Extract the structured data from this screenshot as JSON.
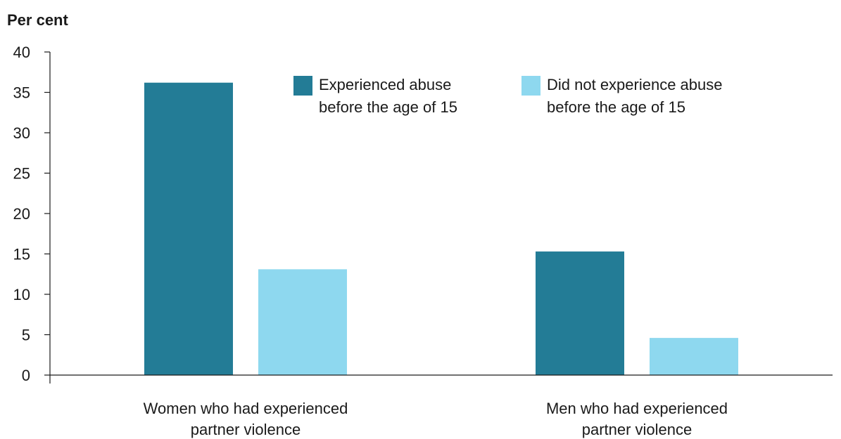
{
  "chart_data": {
    "type": "bar",
    "ylabel": "Per cent",
    "ylim": [
      0,
      40
    ],
    "yticks": [
      0,
      5,
      10,
      15,
      20,
      25,
      30,
      35,
      40
    ],
    "categories": [
      [
        "Women who had experienced",
        "partner violence"
      ],
      [
        "Men who had experienced",
        "partner violence"
      ]
    ],
    "series": [
      {
        "name": [
          "Experienced abuse",
          "before the age of 15"
        ],
        "color": "#237c96",
        "values": [
          36.2,
          15.3
        ]
      },
      {
        "name": [
          "Did not experience abuse",
          "before the age of 15"
        ],
        "color": "#8ed8ef",
        "values": [
          13.1,
          4.6
        ]
      }
    ],
    "legend_position": "top",
    "grid": false
  }
}
